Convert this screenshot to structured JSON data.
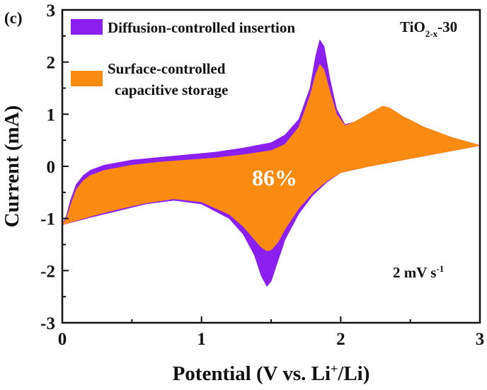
{
  "panel_label": "(c)",
  "sample_label": {
    "base": "TiO",
    "sub": "2-x",
    "suffix": "-30"
  },
  "rate_label": {
    "base": "2 mV s",
    "sup": "-1"
  },
  "percent_label": "86%",
  "colors": {
    "diffusion": "#8a1ff0",
    "capacitive": "#f98a12",
    "axis": "#111111"
  },
  "chart_data": {
    "type": "area",
    "xlabel_parts": {
      "pre": "Potential (V vs. Li",
      "sup": "+",
      "post": "/Li)"
    },
    "ylabel": "Current (mA)",
    "xlim": [
      0,
      3
    ],
    "ylim": [
      -3,
      3
    ],
    "xticks": [
      "0",
      "1",
      "2",
      "3"
    ],
    "yticks": [
      "-3",
      "-2",
      "-1",
      "0",
      "1",
      "2",
      "3"
    ],
    "grid": false,
    "legend_position": "top-left",
    "legend": [
      {
        "label": "Diffusion-controlled insertion",
        "color": "#8a1ff0"
      },
      {
        "label_lines": [
          "Surface-controlled",
          "capacitive storage"
        ],
        "color": "#f98a12"
      }
    ],
    "series": [
      {
        "name": "Diffusion-controlled insertion",
        "color": "#8a1ff0",
        "anodic": [
          [
            0.0,
            -1.12
          ],
          [
            0.03,
            -0.95
          ],
          [
            0.06,
            -0.65
          ],
          [
            0.1,
            -0.35
          ],
          [
            0.15,
            -0.18
          ],
          [
            0.2,
            -0.08
          ],
          [
            0.3,
            0.02
          ],
          [
            0.5,
            0.12
          ],
          [
            0.7,
            0.17
          ],
          [
            0.9,
            0.22
          ],
          [
            1.1,
            0.27
          ],
          [
            1.3,
            0.35
          ],
          [
            1.5,
            0.45
          ],
          [
            1.6,
            0.6
          ],
          [
            1.7,
            0.9
          ],
          [
            1.78,
            1.5
          ],
          [
            1.82,
            2.1
          ],
          [
            1.85,
            2.42
          ],
          [
            1.88,
            2.3
          ],
          [
            1.92,
            1.7
          ],
          [
            1.97,
            1.1
          ],
          [
            2.03,
            0.8
          ],
          [
            2.1,
            0.85
          ],
          [
            2.2,
            1.0
          ],
          [
            2.3,
            1.15
          ],
          [
            2.35,
            1.12
          ],
          [
            2.45,
            0.95
          ],
          [
            2.6,
            0.75
          ],
          [
            2.8,
            0.55
          ],
          [
            3.0,
            0.4
          ]
        ],
        "cathodic": [
          [
            3.0,
            0.4
          ],
          [
            2.8,
            0.3
          ],
          [
            2.6,
            0.2
          ],
          [
            2.4,
            0.1
          ],
          [
            2.2,
            0.0
          ],
          [
            2.0,
            -0.12
          ],
          [
            1.9,
            -0.3
          ],
          [
            1.8,
            -0.55
          ],
          [
            1.7,
            -0.9
          ],
          [
            1.6,
            -1.4
          ],
          [
            1.55,
            -1.8
          ],
          [
            1.5,
            -2.2
          ],
          [
            1.47,
            -2.3
          ],
          [
            1.43,
            -2.1
          ],
          [
            1.38,
            -1.7
          ],
          [
            1.3,
            -1.3
          ],
          [
            1.2,
            -1.0
          ],
          [
            1.0,
            -0.72
          ],
          [
            0.8,
            -0.65
          ],
          [
            0.6,
            -0.72
          ],
          [
            0.4,
            -0.85
          ],
          [
            0.2,
            -0.98
          ],
          [
            0.0,
            -1.12
          ]
        ]
      },
      {
        "name": "Surface-controlled capacitive storage",
        "color": "#f98a12",
        "anodic": [
          [
            0.0,
            -1.12
          ],
          [
            0.03,
            -1.0
          ],
          [
            0.06,
            -0.75
          ],
          [
            0.1,
            -0.45
          ],
          [
            0.15,
            -0.28
          ],
          [
            0.2,
            -0.18
          ],
          [
            0.3,
            -0.08
          ],
          [
            0.5,
            0.02
          ],
          [
            0.7,
            0.08
          ],
          [
            0.9,
            0.12
          ],
          [
            1.1,
            0.16
          ],
          [
            1.3,
            0.22
          ],
          [
            1.5,
            0.3
          ],
          [
            1.6,
            0.42
          ],
          [
            1.7,
            0.75
          ],
          [
            1.78,
            1.35
          ],
          [
            1.82,
            1.75
          ],
          [
            1.85,
            1.95
          ],
          [
            1.88,
            1.85
          ],
          [
            1.92,
            1.45
          ],
          [
            1.97,
            1.0
          ],
          [
            2.03,
            0.78
          ],
          [
            2.1,
            0.85
          ],
          [
            2.2,
            1.0
          ],
          [
            2.3,
            1.15
          ],
          [
            2.35,
            1.12
          ],
          [
            2.45,
            0.95
          ],
          [
            2.6,
            0.75
          ],
          [
            2.8,
            0.55
          ],
          [
            3.0,
            0.4
          ]
        ],
        "cathodic": [
          [
            3.0,
            0.4
          ],
          [
            2.8,
            0.3
          ],
          [
            2.6,
            0.2
          ],
          [
            2.4,
            0.1
          ],
          [
            2.2,
            0.0
          ],
          [
            2.0,
            -0.12
          ],
          [
            1.9,
            -0.28
          ],
          [
            1.8,
            -0.5
          ],
          [
            1.7,
            -0.8
          ],
          [
            1.6,
            -1.2
          ],
          [
            1.55,
            -1.45
          ],
          [
            1.5,
            -1.6
          ],
          [
            1.47,
            -1.62
          ],
          [
            1.43,
            -1.55
          ],
          [
            1.38,
            -1.4
          ],
          [
            1.3,
            -1.15
          ],
          [
            1.2,
            -0.92
          ],
          [
            1.0,
            -0.68
          ],
          [
            0.8,
            -0.62
          ],
          [
            0.6,
            -0.7
          ],
          [
            0.4,
            -0.82
          ],
          [
            0.2,
            -0.96
          ],
          [
            0.0,
            -1.12
          ]
        ]
      }
    ]
  }
}
